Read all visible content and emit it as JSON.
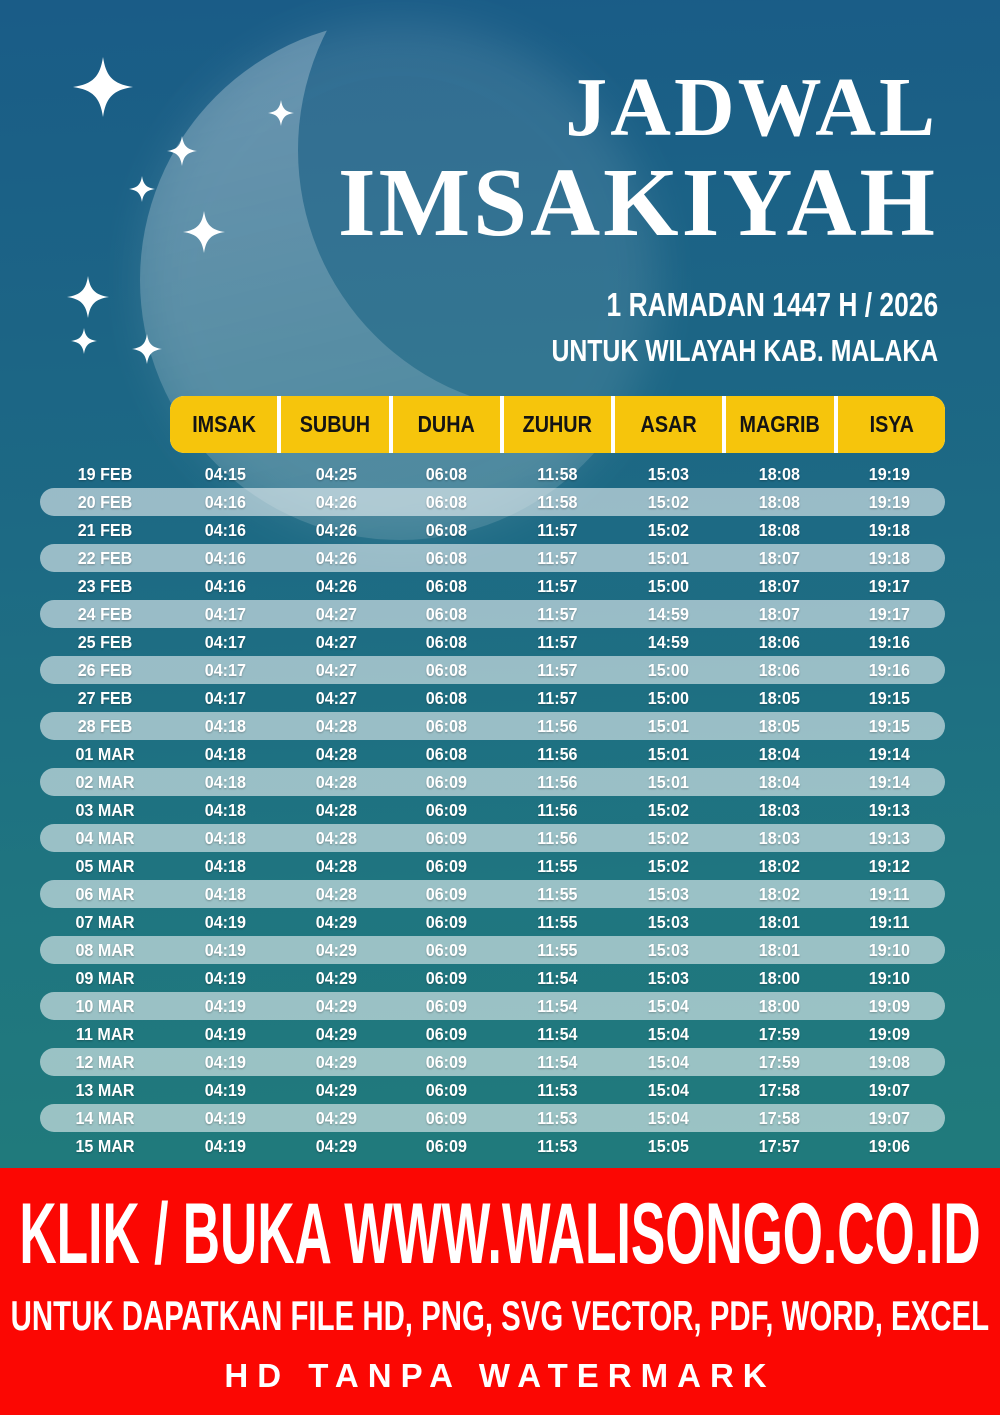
{
  "title": {
    "line1": "JADWAL",
    "line2": "IMSAKIYAH"
  },
  "subtitle": {
    "line1": "1 RAMADAN 1447 H / 2026",
    "line2": "UNTUK WILAYAH KAB. MALAKA"
  },
  "decor": {
    "moon_icon": "crescent-moon",
    "stars_icon": "four-point-sparkle"
  },
  "colors": {
    "accent_yellow": "#f6c50c",
    "footer_red": "#fb0703",
    "background_top": "#1a5c87",
    "background_bottom": "#217f78",
    "stripe_pill": "rgba(255,255,255,0.55)",
    "header_text": "#141414",
    "body_text": "#ffffff"
  },
  "table": {
    "columns": [
      "IMSAK",
      "SUBUH",
      "DUHA",
      "ZUHUR",
      "ASAR",
      "MAGRIB",
      "ISYA"
    ],
    "rows": [
      {
        "date": "19 FEB",
        "times": [
          "04:15",
          "04:25",
          "06:08",
          "11:58",
          "15:03",
          "18:08",
          "19:19"
        ]
      },
      {
        "date": "20 FEB",
        "times": [
          "04:16",
          "04:26",
          "06:08",
          "11:58",
          "15:02",
          "18:08",
          "19:19"
        ]
      },
      {
        "date": "21 FEB",
        "times": [
          "04:16",
          "04:26",
          "06:08",
          "11:57",
          "15:02",
          "18:08",
          "19:18"
        ]
      },
      {
        "date": "22 FEB",
        "times": [
          "04:16",
          "04:26",
          "06:08",
          "11:57",
          "15:01",
          "18:07",
          "19:18"
        ]
      },
      {
        "date": "23 FEB",
        "times": [
          "04:16",
          "04:26",
          "06:08",
          "11:57",
          "15:00",
          "18:07",
          "19:17"
        ]
      },
      {
        "date": "24 FEB",
        "times": [
          "04:17",
          "04:27",
          "06:08",
          "11:57",
          "14:59",
          "18:07",
          "19:17"
        ]
      },
      {
        "date": "25 FEB",
        "times": [
          "04:17",
          "04:27",
          "06:08",
          "11:57",
          "14:59",
          "18:06",
          "19:16"
        ]
      },
      {
        "date": "26 FEB",
        "times": [
          "04:17",
          "04:27",
          "06:08",
          "11:57",
          "15:00",
          "18:06",
          "19:16"
        ]
      },
      {
        "date": "27 FEB",
        "times": [
          "04:17",
          "04:27",
          "06:08",
          "11:57",
          "15:00",
          "18:05",
          "19:15"
        ]
      },
      {
        "date": "28 FEB",
        "times": [
          "04:18",
          "04:28",
          "06:08",
          "11:56",
          "15:01",
          "18:05",
          "19:15"
        ]
      },
      {
        "date": "01 MAR",
        "times": [
          "04:18",
          "04:28",
          "06:08",
          "11:56",
          "15:01",
          "18:04",
          "19:14"
        ]
      },
      {
        "date": "02 MAR",
        "times": [
          "04:18",
          "04:28",
          "06:09",
          "11:56",
          "15:01",
          "18:04",
          "19:14"
        ]
      },
      {
        "date": "03 MAR",
        "times": [
          "04:18",
          "04:28",
          "06:09",
          "11:56",
          "15:02",
          "18:03",
          "19:13"
        ]
      },
      {
        "date": "04 MAR",
        "times": [
          "04:18",
          "04:28",
          "06:09",
          "11:56",
          "15:02",
          "18:03",
          "19:13"
        ]
      },
      {
        "date": "05 MAR",
        "times": [
          "04:18",
          "04:28",
          "06:09",
          "11:55",
          "15:02",
          "18:02",
          "19:12"
        ]
      },
      {
        "date": "06 MAR",
        "times": [
          "04:18",
          "04:28",
          "06:09",
          "11:55",
          "15:03",
          "18:02",
          "19:11"
        ]
      },
      {
        "date": "07 MAR",
        "times": [
          "04:19",
          "04:29",
          "06:09",
          "11:55",
          "15:03",
          "18:01",
          "19:11"
        ]
      },
      {
        "date": "08 MAR",
        "times": [
          "04:19",
          "04:29",
          "06:09",
          "11:55",
          "15:03",
          "18:01",
          "19:10"
        ]
      },
      {
        "date": "09 MAR",
        "times": [
          "04:19",
          "04:29",
          "06:09",
          "11:54",
          "15:03",
          "18:00",
          "19:10"
        ]
      },
      {
        "date": "10 MAR",
        "times": [
          "04:19",
          "04:29",
          "06:09",
          "11:54",
          "15:04",
          "18:00",
          "19:09"
        ]
      },
      {
        "date": "11 MAR",
        "times": [
          "04:19",
          "04:29",
          "06:09",
          "11:54",
          "15:04",
          "17:59",
          "19:09"
        ]
      },
      {
        "date": "12 MAR",
        "times": [
          "04:19",
          "04:29",
          "06:09",
          "11:54",
          "15:04",
          "17:59",
          "19:08"
        ]
      },
      {
        "date": "13 MAR",
        "times": [
          "04:19",
          "04:29",
          "06:09",
          "11:53",
          "15:04",
          "17:58",
          "19:07"
        ]
      },
      {
        "date": "14 MAR",
        "times": [
          "04:19",
          "04:29",
          "06:09",
          "11:53",
          "15:04",
          "17:58",
          "19:07"
        ]
      },
      {
        "date": "15 MAR",
        "times": [
          "04:19",
          "04:29",
          "06:09",
          "11:53",
          "15:05",
          "17:57",
          "19:06"
        ]
      }
    ]
  },
  "footer": {
    "line1": "KLIK / BUKA WWW.WALISONGO.CO.ID",
    "line2": "UNTUK DAPATKAN FILE HD, PNG, SVG VECTOR, PDF, WORD, EXCEL",
    "line3": "HD TANPA WATERMARK"
  }
}
